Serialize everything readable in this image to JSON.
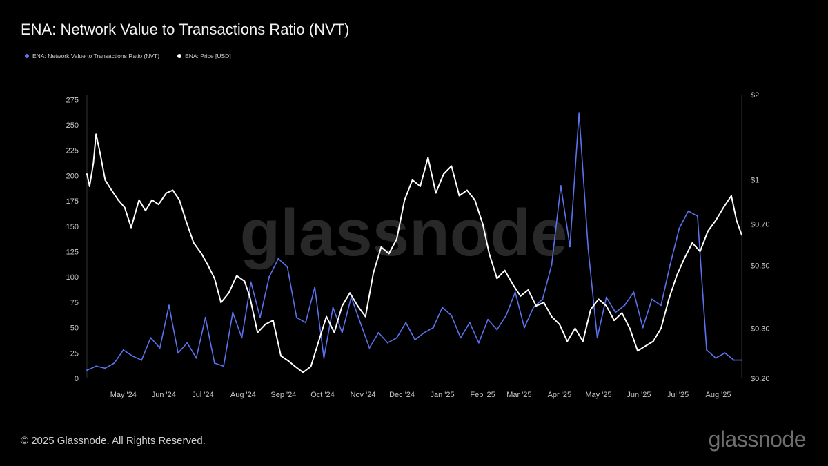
{
  "page": {
    "title": "ENA: Network Value to Transactions Ratio (NVT)"
  },
  "footer": {
    "copyright": "© 2025 Glassnode. All Rights Reserved.",
    "brand": "glassnode"
  },
  "watermark": "glassnode",
  "colors": {
    "nvt": "#5b72ee",
    "price": "#ffffff",
    "background": "#000000"
  },
  "chart_data": {
    "type": "line",
    "title": "ENA: Network Value to Transactions Ratio (NVT)",
    "legend_placement": "top-left",
    "grid": false,
    "x_tick_labels": [
      "May '24",
      "Jun '24",
      "Jul '24",
      "Aug '24",
      "Sep '24",
      "Oct '24",
      "Nov '24",
      "Dec '24",
      "Jan '25",
      "Feb '25",
      "Mar '25",
      "Apr '25",
      "May '25",
      "Jun '25",
      "Jul '25",
      "Aug '25"
    ],
    "x_tick_dates": [
      "2024-05-01",
      "2024-06-01",
      "2024-07-01",
      "2024-08-01",
      "2024-09-01",
      "2024-10-01",
      "2024-11-01",
      "2024-12-01",
      "2025-01-01",
      "2025-02-01",
      "2025-03-01",
      "2025-04-01",
      "2025-05-01",
      "2025-06-01",
      "2025-07-01",
      "2025-08-01"
    ],
    "x_range": [
      "2024-04-03",
      "2025-08-19"
    ],
    "y_left": {
      "ticks": [
        0,
        25,
        50,
        75,
        100,
        125,
        150,
        175,
        200,
        225,
        250,
        275
      ],
      "range": [
        0,
        280
      ]
    },
    "y_right": {
      "scale": "log",
      "tick_labels": [
        "$0.20",
        "$0.30",
        "$0.50",
        "$0.70",
        "$1",
        "$2"
      ],
      "tick_values": [
        0.2,
        0.3,
        0.5,
        0.7,
        1,
        2
      ],
      "range": [
        0.2,
        2
      ]
    },
    "series": [
      {
        "name": "ENA: Network Value to Transactions Ratio (NVT)",
        "axis": "left",
        "x": [
          "2024-04-03",
          "2024-04-10",
          "2024-04-17",
          "2024-04-24",
          "2024-05-01",
          "2024-05-08",
          "2024-05-15",
          "2024-05-22",
          "2024-05-29",
          "2024-06-05",
          "2024-06-12",
          "2024-06-19",
          "2024-06-26",
          "2024-07-03",
          "2024-07-10",
          "2024-07-17",
          "2024-07-24",
          "2024-07-31",
          "2024-08-07",
          "2024-08-14",
          "2024-08-21",
          "2024-08-28",
          "2024-09-04",
          "2024-09-11",
          "2024-09-18",
          "2024-09-25",
          "2024-10-02",
          "2024-10-09",
          "2024-10-16",
          "2024-10-23",
          "2024-10-30",
          "2024-11-06",
          "2024-11-13",
          "2024-11-20",
          "2024-11-27",
          "2024-12-04",
          "2024-12-11",
          "2024-12-18",
          "2024-12-25",
          "2025-01-01",
          "2025-01-08",
          "2025-01-15",
          "2025-01-22",
          "2025-01-29",
          "2025-02-05",
          "2025-02-12",
          "2025-02-19",
          "2025-02-26",
          "2025-03-05",
          "2025-03-12",
          "2025-03-19",
          "2025-03-26",
          "2025-04-02",
          "2025-04-09",
          "2025-04-16",
          "2025-04-23",
          "2025-04-30",
          "2025-05-07",
          "2025-05-14",
          "2025-05-21",
          "2025-05-28",
          "2025-06-04",
          "2025-06-11",
          "2025-06-18",
          "2025-06-25",
          "2025-07-02",
          "2025-07-09",
          "2025-07-16",
          "2025-07-23",
          "2025-07-30",
          "2025-08-06",
          "2025-08-13",
          "2025-08-19"
        ],
        "values": [
          8,
          12,
          10,
          15,
          28,
          22,
          18,
          40,
          30,
          72,
          25,
          35,
          20,
          60,
          15,
          12,
          65,
          40,
          95,
          60,
          100,
          118,
          110,
          60,
          55,
          90,
          20,
          70,
          45,
          80,
          55,
          30,
          45,
          35,
          40,
          55,
          38,
          45,
          50,
          70,
          62,
          40,
          55,
          35,
          58,
          48,
          62,
          85,
          50,
          70,
          78,
          112,
          190,
          130,
          262,
          128,
          40,
          80,
          65,
          72,
          85,
          50,
          78,
          72,
          112,
          148,
          165,
          160,
          28,
          20,
          25,
          18,
          18
        ]
      },
      {
        "name": "ENA: Price [USD]",
        "axis": "right",
        "x": [
          "2024-04-03",
          "2024-04-05",
          "2024-04-08",
          "2024-04-10",
          "2024-04-13",
          "2024-04-17",
          "2024-04-22",
          "2024-04-27",
          "2024-05-02",
          "2024-05-07",
          "2024-05-13",
          "2024-05-18",
          "2024-05-23",
          "2024-05-28",
          "2024-06-03",
          "2024-06-08",
          "2024-06-13",
          "2024-06-18",
          "2024-06-24",
          "2024-06-30",
          "2024-07-05",
          "2024-07-10",
          "2024-07-15",
          "2024-07-21",
          "2024-07-27",
          "2024-08-02",
          "2024-08-06",
          "2024-08-12",
          "2024-08-18",
          "2024-08-24",
          "2024-08-30",
          "2024-09-05",
          "2024-09-10",
          "2024-09-16",
          "2024-09-22",
          "2024-09-28",
          "2024-10-04",
          "2024-10-10",
          "2024-10-16",
          "2024-10-22",
          "2024-10-28",
          "2024-11-03",
          "2024-11-09",
          "2024-11-15",
          "2024-11-21",
          "2024-11-27",
          "2024-12-03",
          "2024-12-09",
          "2024-12-15",
          "2024-12-21",
          "2024-12-27",
          "2025-01-02",
          "2025-01-08",
          "2025-01-14",
          "2025-01-20",
          "2025-01-26",
          "2025-02-01",
          "2025-02-06",
          "2025-02-12",
          "2025-02-18",
          "2025-02-24",
          "2025-03-02",
          "2025-03-08",
          "2025-03-14",
          "2025-03-20",
          "2025-03-26",
          "2025-04-01",
          "2025-04-07",
          "2025-04-13",
          "2025-04-19",
          "2025-04-25",
          "2025-05-01",
          "2025-05-07",
          "2025-05-13",
          "2025-05-19",
          "2025-05-25",
          "2025-05-31",
          "2025-06-06",
          "2025-06-12",
          "2025-06-18",
          "2025-06-24",
          "2025-06-30",
          "2025-07-06",
          "2025-07-12",
          "2025-07-18",
          "2025-07-24",
          "2025-07-30",
          "2025-08-05",
          "2025-08-11",
          "2025-08-15",
          "2025-08-19"
        ],
        "values": [
          1.05,
          0.95,
          1.15,
          1.45,
          1.25,
          1.0,
          0.92,
          0.85,
          0.8,
          0.68,
          0.85,
          0.78,
          0.85,
          0.82,
          0.9,
          0.92,
          0.85,
          0.72,
          0.6,
          0.55,
          0.5,
          0.45,
          0.37,
          0.4,
          0.46,
          0.44,
          0.39,
          0.29,
          0.31,
          0.32,
          0.24,
          0.23,
          0.22,
          0.21,
          0.22,
          0.27,
          0.33,
          0.29,
          0.36,
          0.4,
          0.36,
          0.33,
          0.47,
          0.58,
          0.55,
          0.62,
          0.85,
          1.0,
          0.95,
          1.2,
          0.9,
          1.05,
          1.12,
          0.88,
          0.92,
          0.85,
          0.7,
          0.55,
          0.45,
          0.48,
          0.43,
          0.39,
          0.41,
          0.36,
          0.37,
          0.33,
          0.31,
          0.27,
          0.3,
          0.27,
          0.35,
          0.38,
          0.36,
          0.32,
          0.34,
          0.3,
          0.25,
          0.26,
          0.27,
          0.3,
          0.38,
          0.46,
          0.53,
          0.6,
          0.56,
          0.66,
          0.72,
          0.8,
          0.88,
          0.72,
          0.64
        ]
      }
    ]
  }
}
